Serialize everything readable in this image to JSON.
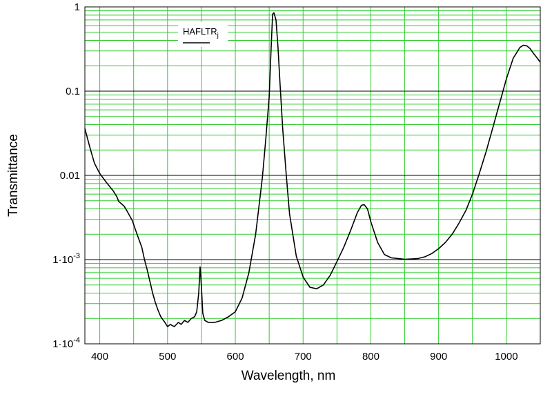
{
  "chart_data": {
    "type": "line",
    "title": "",
    "xlabel": "Wavelength, nm",
    "ylabel": "Transmittance",
    "xlim": [
      378,
      1050
    ],
    "ylim": [
      0.0001,
      1
    ],
    "yscale": "log",
    "grid": true,
    "legend_position": "top-left",
    "x_ticks": [
      {
        "value": 400,
        "label": "400"
      },
      {
        "value": 500,
        "label": "500"
      },
      {
        "value": 600,
        "label": "600"
      },
      {
        "value": 700,
        "label": "700"
      },
      {
        "value": 800,
        "label": "800"
      },
      {
        "value": 900,
        "label": "900"
      },
      {
        "value": 1000,
        "label": "1000"
      }
    ],
    "y_ticks": [
      {
        "value": 1,
        "label": "1"
      },
      {
        "value": 0.1,
        "label": "0.1"
      },
      {
        "value": 0.01,
        "label": "0.01"
      },
      {
        "value": 0.001,
        "label": "1·10",
        "exp": "-3"
      },
      {
        "value": 0.0001,
        "label": "1·10",
        "exp": "-4"
      }
    ],
    "series": [
      {
        "name": "HAFLTR",
        "name_subscript": "j",
        "color": "#000000",
        "x": [
          378,
          385,
          392,
          400,
          410,
          420,
          425,
          428,
          432,
          436,
          440,
          448,
          455,
          462,
          466,
          470,
          474,
          478,
          482,
          486,
          490,
          496,
          500,
          504,
          510,
          516,
          520,
          525,
          530,
          535,
          540,
          543,
          546,
          548,
          550,
          552,
          555,
          560,
          570,
          580,
          590,
          600,
          610,
          620,
          630,
          640,
          645,
          650,
          653,
          655,
          657,
          660,
          663,
          666,
          670,
          675,
          680,
          690,
          700,
          710,
          720,
          730,
          740,
          750,
          760,
          770,
          780,
          786,
          790,
          795,
          800,
          810,
          820,
          830,
          840,
          850,
          860,
          870,
          880,
          890,
          900,
          910,
          920,
          930,
          940,
          950,
          960,
          970,
          980,
          990,
          1000,
          1010,
          1020,
          1025,
          1030,
          1035,
          1040,
          1045,
          1050
        ],
        "y": [
          0.036,
          0.022,
          0.014,
          0.0105,
          0.0082,
          0.0065,
          0.0056,
          0.0049,
          0.0046,
          0.0043,
          0.0038,
          0.0029,
          0.002,
          0.0014,
          0.001,
          0.00075,
          0.00055,
          0.0004,
          0.00031,
          0.00025,
          0.00021,
          0.00018,
          0.00016,
          0.00017,
          0.00016,
          0.00018,
          0.00017,
          0.00019,
          0.00018,
          0.0002,
          0.00021,
          0.00024,
          0.0004,
          0.00082,
          0.00048,
          0.00023,
          0.00019,
          0.00018,
          0.00018,
          0.00019,
          0.00021,
          0.00024,
          0.00035,
          0.0007,
          0.002,
          0.0095,
          0.027,
          0.085,
          0.35,
          0.82,
          0.85,
          0.7,
          0.33,
          0.12,
          0.035,
          0.0105,
          0.0035,
          0.0011,
          0.00062,
          0.00047,
          0.00045,
          0.0005,
          0.00065,
          0.00095,
          0.0014,
          0.0022,
          0.0036,
          0.0044,
          0.0045,
          0.004,
          0.0028,
          0.0016,
          0.00115,
          0.00105,
          0.00103,
          0.00101,
          0.00102,
          0.00103,
          0.00108,
          0.00118,
          0.00135,
          0.0016,
          0.002,
          0.0027,
          0.0038,
          0.006,
          0.0105,
          0.019,
          0.037,
          0.072,
          0.14,
          0.245,
          0.33,
          0.35,
          0.345,
          0.32,
          0.28,
          0.25,
          0.22
        ]
      }
    ]
  }
}
